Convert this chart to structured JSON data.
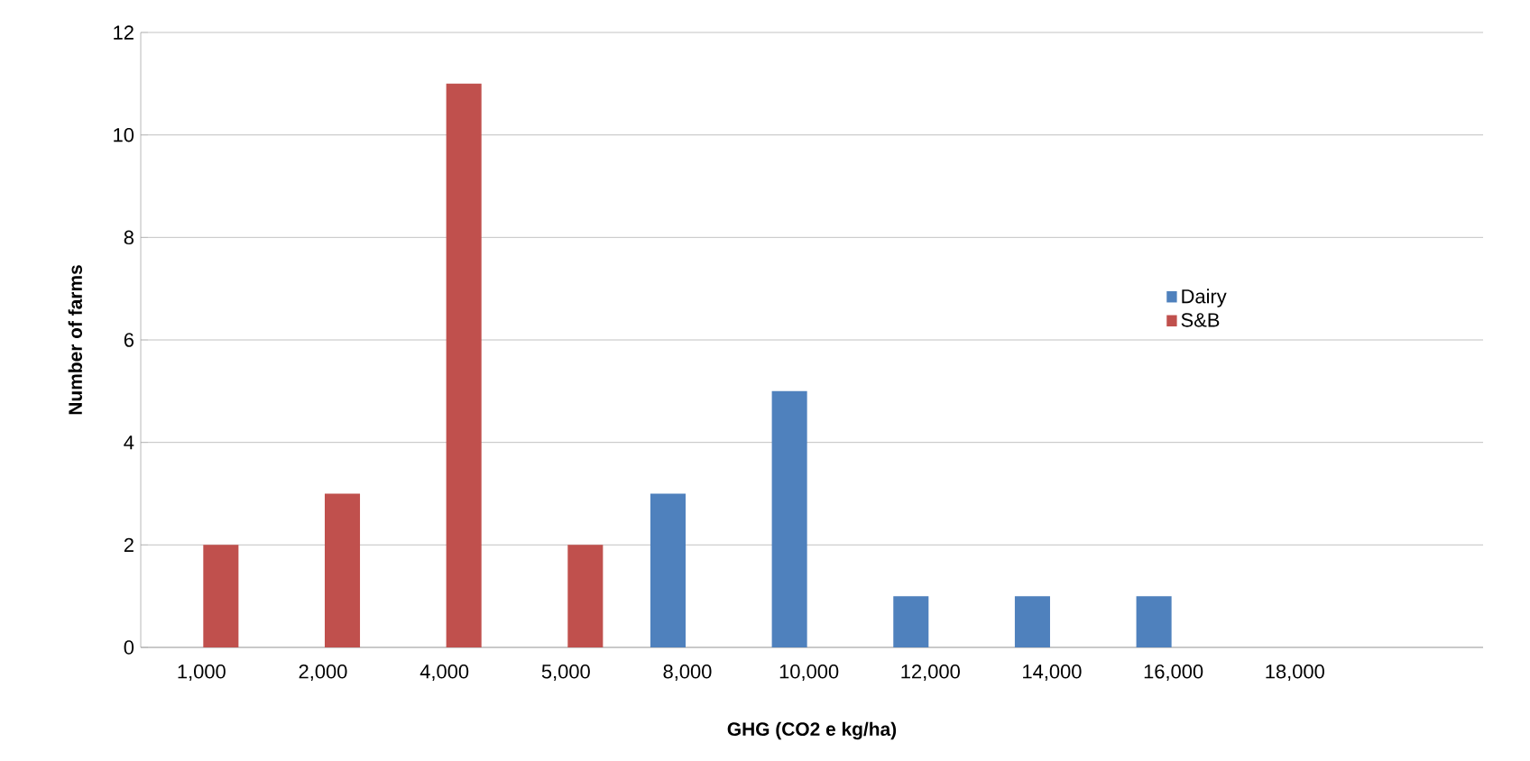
{
  "chart_data": {
    "type": "bar",
    "xlabel": "GHG (CO2 e kg/ha)",
    "ylabel": "Number of farms",
    "categories": [
      "1,000",
      "2,000",
      "4,000",
      "5,000",
      "8,000",
      "10,000",
      "12,000",
      "14,000",
      "16,000",
      "18,000",
      null
    ],
    "series": [
      {
        "name": "Dairy",
        "color": "#4f81bd",
        "values": [
          null,
          null,
          null,
          null,
          3,
          5,
          1,
          1,
          1,
          null,
          null
        ]
      },
      {
        "name": "S&B",
        "color": "#c0504d",
        "values": [
          2,
          3,
          11,
          2,
          null,
          null,
          null,
          null,
          null,
          null,
          null
        ]
      }
    ],
    "ylim": [
      0,
      12
    ],
    "yticks": [
      0,
      2,
      4,
      6,
      8,
      10,
      12
    ],
    "grid": "y",
    "legend": "right"
  }
}
